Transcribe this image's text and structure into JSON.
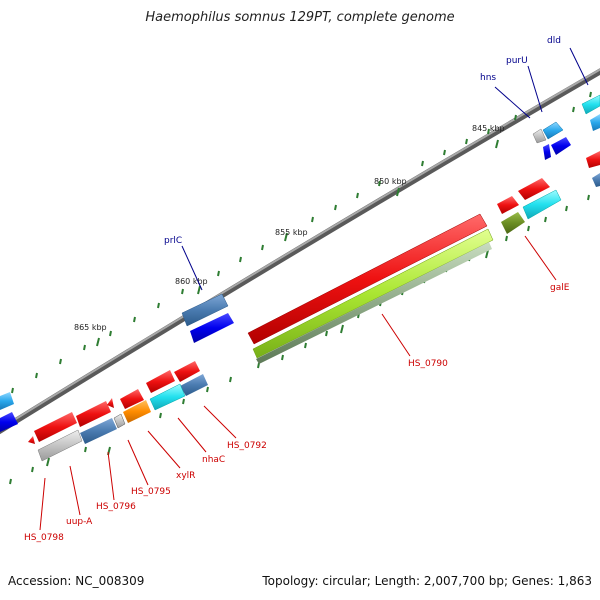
{
  "title": "Haemophilus somnus 129PT, complete genome",
  "footer": {
    "accession": "Accession: NC_008309",
    "summary": "Topology: circular; Length: 2,007,700 bp; Genes: 1,863"
  },
  "ticks": [
    "845 kbp",
    "850 kbp",
    "855 kbp",
    "860 kbp",
    "865 kbp"
  ],
  "gene_labels": {
    "dld": "dld",
    "purU": "purU",
    "hns": "hns",
    "prlC": "prlC",
    "galE": "galE",
    "HS_0790": "HS_0790",
    "HS_0792": "HS_0792",
    "nhaC": "nhaC",
    "xylR": "xylR",
    "HS_0795": "HS_0795",
    "HS_0796": "HS_0796",
    "uup_A": "uup-A",
    "HS_0798": "HS_0798"
  },
  "colors": {
    "forward_label": "#00008b",
    "reverse_label": "#cc0000",
    "backbone": "#808080",
    "tick": "#2e7d32"
  }
}
